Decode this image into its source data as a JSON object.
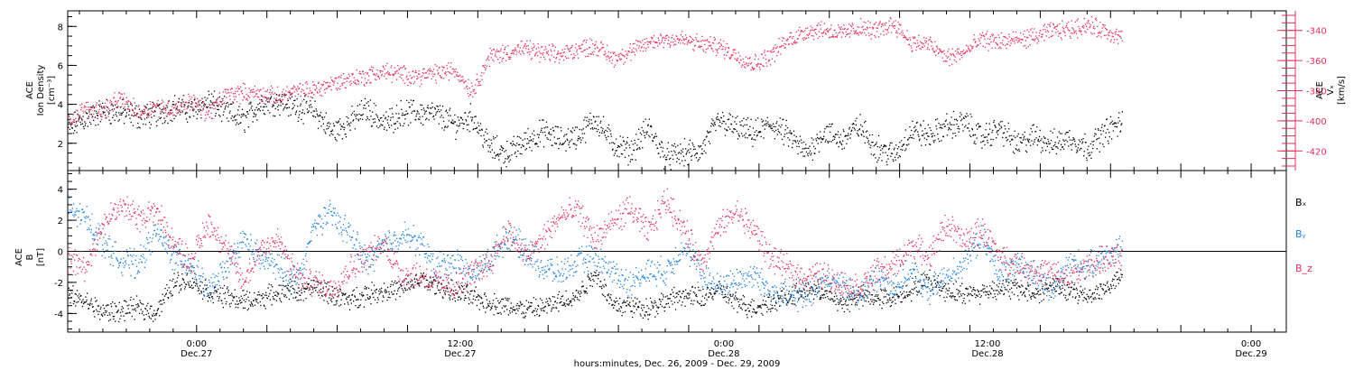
{
  "chart_data": [
    {
      "type": "scatter",
      "panel": "top",
      "ylabel_left": [
        "ACE",
        "Ion Density",
        "[cm⁻³]"
      ],
      "ylabel_right": [
        "ACE",
        "Vₓ",
        "[km/s]"
      ],
      "left_axis": {
        "range": [
          0.6,
          8.8
        ],
        "ticks": [
          2,
          4,
          6,
          8
        ]
      },
      "right_axis": {
        "range": [
          -433,
          -327
        ],
        "ticks": [
          -340,
          -360,
          -380,
          -400,
          -420
        ],
        "reversed": false
      },
      "series": [
        {
          "axis": "left",
          "color": "#000000",
          "x_hours": [
            0,
            3,
            6,
            9,
            12,
            15,
            18,
            21,
            24,
            27,
            30,
            33,
            36,
            38,
            40,
            42,
            45,
            48,
            51,
            54,
            57,
            60,
            63,
            66,
            69,
            72,
            75,
            78,
            81,
            84,
            87,
            90,
            93,
            96,
            99,
            102,
            105,
            108,
            111,
            114,
            117,
            120,
            123,
            126,
            129,
            132,
            135,
            138,
            141,
            144,
            147,
            150,
            153,
            156,
            159,
            162,
            165,
            168,
            171,
            174,
            177,
            180
          ],
          "values": [
            2.8,
            3.3,
            3.7,
            3.6,
            3.4,
            3.5,
            3.9,
            3.7,
            4.2,
            3.6,
            3.2,
            4.1,
            4.2,
            4.0,
            3.8,
            3.7,
            2.6,
            3.1,
            3.8,
            3.0,
            3.6,
            3.6,
            3.5,
            3.0,
            3.4,
            1.8,
            1.5,
            2.1,
            2.6,
            2.2,
            2.4,
            3.3,
            2.0,
            1.6,
            2.8,
            1.3,
            1.5,
            1.6,
            3.2,
            2.8,
            2.5,
            3.0,
            2.4,
            1.5,
            2.6,
            2.2,
            2.9,
            1.8,
            1.4,
            2.7,
            2.4,
            2.9,
            3.1,
            2.3,
            2.8,
            1.9,
            2.4,
            2.0,
            2.3,
            1.8,
            2.6,
            3.1
          ]
        },
        {
          "axis": "right",
          "color": "#e0305f",
          "x_hours": [
            0,
            3,
            6,
            9,
            12,
            15,
            18,
            21,
            24,
            27,
            30,
            33,
            36,
            38,
            40,
            42,
            45,
            48,
            51,
            54,
            57,
            60,
            63,
            66,
            69,
            72,
            75,
            78,
            81,
            84,
            87,
            90,
            93,
            96,
            99,
            102,
            105,
            108,
            111,
            114,
            117,
            120,
            123,
            126,
            129,
            132,
            135,
            138,
            141,
            144,
            147,
            150,
            153,
            156,
            159,
            162,
            165,
            168,
            171,
            174,
            177,
            180
          ],
          "values": [
            -400,
            -392,
            -393,
            -385,
            -394,
            -390,
            -392,
            -386,
            -395,
            -382,
            -381,
            -382,
            -384,
            -381,
            -380,
            -379,
            -375,
            -372,
            -370,
            -367,
            -369,
            -370,
            -368,
            -366,
            -380,
            -357,
            -354,
            -352,
            -355,
            -356,
            -352,
            -350,
            -358,
            -354,
            -348,
            -345,
            -346,
            -349,
            -350,
            -356,
            -362,
            -356,
            -346,
            -340,
            -339,
            -342,
            -338,
            -340,
            -335,
            -348,
            -349,
            -358,
            -354,
            -346,
            -347,
            -346,
            -344,
            -340,
            -339,
            -336,
            -340,
            -345
          ]
        }
      ],
      "xlim_hours": [
        0,
        208
      ]
    },
    {
      "type": "scatter",
      "panel": "bottom",
      "ylabel_left": [
        "ACE",
        "B",
        "[nT]"
      ],
      "left_axis": {
        "range": [
          -5.2,
          5.2
        ],
        "ticks": [
          -4,
          -2,
          0,
          2,
          4
        ]
      },
      "zero_line": true,
      "series": [
        {
          "name": "Bₓ",
          "color": "#000000",
          "x_hours": [
            0,
            3,
            6,
            9,
            12,
            15,
            18,
            21,
            24,
            27,
            30,
            33,
            36,
            38,
            40,
            42,
            45,
            48,
            51,
            54,
            57,
            60,
            63,
            66,
            69,
            72,
            75,
            78,
            81,
            84,
            87,
            90,
            93,
            96,
            99,
            102,
            105,
            108,
            111,
            114,
            117,
            120,
            123,
            126,
            129,
            132,
            135,
            138,
            141,
            144,
            147,
            150,
            153,
            156,
            159,
            162,
            165,
            168,
            171,
            174,
            177,
            180
          ],
          "values": [
            -2.8,
            -3.2,
            -3.9,
            -3.8,
            -3.6,
            -3.9,
            -2.0,
            -1.8,
            -2.6,
            -2.9,
            -3.2,
            -3.0,
            -2.6,
            -2.4,
            -2.7,
            -2.2,
            -2.8,
            -3.1,
            -2.7,
            -2.5,
            -2.4,
            -1.8,
            -2.2,
            -2.6,
            -2.9,
            -3.3,
            -3.5,
            -3.7,
            -3.6,
            -3.2,
            -2.8,
            -1.3,
            -3.4,
            -3.5,
            -3.6,
            -3.2,
            -2.8,
            -3.0,
            -2.4,
            -3.3,
            -3.6,
            -3.2,
            -2.9,
            -2.4,
            -2.6,
            -3.4,
            -2.8,
            -3.0,
            -2.9,
            -2.4,
            -1.8,
            -2.5,
            -2.7,
            -2.6,
            -2.3,
            -2.4,
            -2.7,
            -2.2,
            -2.6,
            -2.8,
            -2.4,
            -1.5
          ]
        },
        {
          "name": "Bᵧ",
          "color": "#1e7fdc",
          "x_hours": [
            0,
            3,
            6,
            9,
            12,
            15,
            18,
            21,
            24,
            27,
            30,
            33,
            36,
            38,
            40,
            42,
            45,
            48,
            51,
            54,
            57,
            60,
            63,
            66,
            69,
            72,
            75,
            78,
            81,
            84,
            87,
            90,
            93,
            96,
            99,
            102,
            105,
            108,
            111,
            114,
            117,
            120,
            123,
            126,
            129,
            132,
            135,
            138,
            141,
            144,
            147,
            150,
            153,
            156,
            159,
            162,
            165,
            168,
            171,
            174,
            177,
            180
          ],
          "values": [
            2.7,
            2.2,
            0.6,
            -0.6,
            -0.8,
            1.3,
            -0.3,
            -0.8,
            -2.6,
            -1.0,
            0.8,
            -0.5,
            -1.0,
            -1.8,
            -1.2,
            1.8,
            2.4,
            1.2,
            -0.7,
            0.5,
            1.1,
            0.6,
            -1.0,
            -0.5,
            -1.6,
            -0.4,
            1.0,
            0.2,
            -1.0,
            -1.4,
            -0.6,
            -0.4,
            -1.3,
            -2.1,
            -1.2,
            -1.3,
            0.4,
            -1.4,
            -2.3,
            -1.8,
            -1.5,
            -2.5,
            -2.8,
            -3.0,
            -1.7,
            -2.2,
            -2.9,
            -1.6,
            -2.2,
            -1.3,
            -2.5,
            -1.6,
            -0.6,
            0.9,
            -1.4,
            -1.0,
            -1.2,
            -2.6,
            -0.6,
            -1.0,
            -0.2,
            0.3
          ]
        },
        {
          "name": "B_z",
          "color": "#e0305f",
          "x_hours": [
            0,
            3,
            6,
            9,
            12,
            15,
            18,
            21,
            24,
            27,
            30,
            33,
            36,
            38,
            40,
            42,
            45,
            48,
            51,
            54,
            57,
            60,
            63,
            66,
            69,
            72,
            75,
            78,
            81,
            84,
            87,
            90,
            93,
            96,
            99,
            102,
            105,
            108,
            111,
            114,
            117,
            120,
            123,
            126,
            129,
            132,
            135,
            138,
            141,
            144,
            147,
            150,
            153,
            156,
            159,
            162,
            165,
            168,
            171,
            174,
            177,
            180
          ],
          "values": [
            -0.5,
            -0.9,
            1.8,
            3.0,
            2.2,
            2.7,
            0.5,
            -0.6,
            1.9,
            0.2,
            -2.1,
            0.4,
            0.7,
            -0.9,
            -2.0,
            -1.9,
            -2.4,
            -1.1,
            -0.2,
            0.5,
            -1.5,
            -1.5,
            -2.0,
            -2.3,
            -1.4,
            -0.7,
            1.5,
            -0.4,
            0.8,
            2.3,
            2.6,
            0.8,
            1.9,
            2.8,
            1.2,
            3.4,
            1.6,
            -0.8,
            1.5,
            2.6,
            1.4,
            -0.4,
            -1.2,
            -1.6,
            -1.5,
            -2.1,
            -2.3,
            -1.3,
            -0.9,
            0.4,
            -0.3,
            1.8,
            0.6,
            1.4,
            -0.3,
            -0.9,
            -1.2,
            -1.4,
            -1.8,
            -0.9,
            -0.5,
            -0.4
          ]
        }
      ],
      "xlim_hours": [
        0,
        208
      ]
    }
  ],
  "x_axis": {
    "major_ticks_hours": [
      22,
      34,
      46,
      58,
      70,
      82,
      94,
      106,
      118,
      130,
      142,
      154,
      166,
      178,
      190,
      202
    ],
    "labels": [
      {
        "hours": 22,
        "time": "0:00",
        "date": "Dec.27"
      },
      {
        "hours": 67,
        "time": "12:00",
        "date": "Dec.27"
      },
      {
        "hours": 112,
        "time": "0:00",
        "date": "Dec.28"
      },
      {
        "hours": 157,
        "time": "12:00",
        "date": "Dec.28"
      },
      {
        "hours": 202,
        "time": "0:00",
        "date": "Dec.29"
      }
    ],
    "title": "hours:minutes, Dec. 26, 2009 - Dec. 29, 2009"
  },
  "legend": {
    "bx": "Bₓ",
    "by": "Bᵧ",
    "bz": "B_z"
  }
}
